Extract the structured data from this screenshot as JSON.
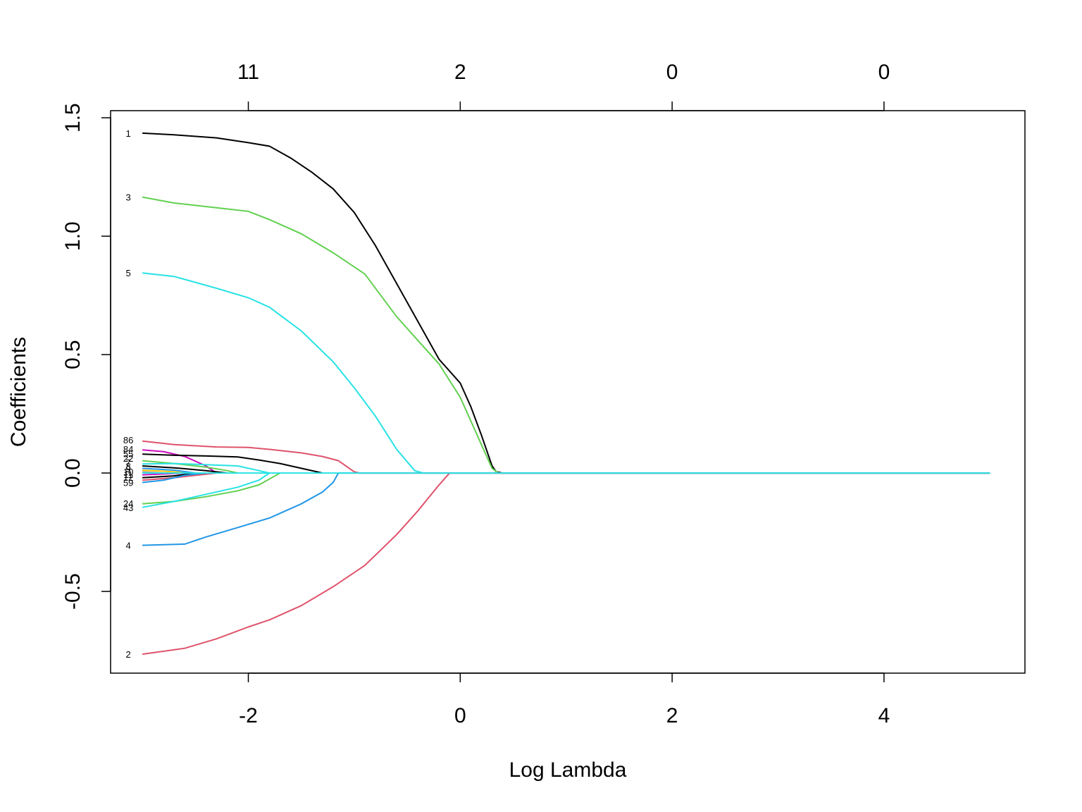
{
  "chart_data": {
    "type": "line",
    "title": "",
    "xlabel": "Log Lambda",
    "ylabel": "Coefficients",
    "xlim": [
      -3.3,
      5.33
    ],
    "ylim": [
      -0.845,
      1.53
    ],
    "grid": false,
    "legend": "none",
    "x_ticks": [
      {
        "value": -2,
        "label": "-2"
      },
      {
        "value": 0,
        "label": "0"
      },
      {
        "value": 2,
        "label": "2"
      },
      {
        "value": 4,
        "label": "4"
      }
    ],
    "y_ticks": [
      {
        "value": -0.5,
        "label": "-0.5"
      },
      {
        "value": 0.0,
        "label": "0.0"
      },
      {
        "value": 0.5,
        "label": "0.5"
      },
      {
        "value": 1.0,
        "label": "1.0"
      },
      {
        "value": 1.5,
        "label": "1.5"
      }
    ],
    "top_ticks": [
      {
        "value": -2,
        "label": "11"
      },
      {
        "value": 0,
        "label": "2"
      },
      {
        "value": 2,
        "label": "0"
      },
      {
        "value": 4,
        "label": "0"
      }
    ],
    "series": [
      {
        "name": "1",
        "color": "#000000",
        "points": [
          [
            -3.0,
            1.435
          ],
          [
            -2.7,
            1.428
          ],
          [
            -2.3,
            1.415
          ],
          [
            -2.0,
            1.395
          ],
          [
            -1.8,
            1.38
          ],
          [
            -1.6,
            1.33
          ],
          [
            -1.4,
            1.27
          ],
          [
            -1.2,
            1.2
          ],
          [
            -1.0,
            1.1
          ],
          [
            -0.8,
            0.96
          ],
          [
            -0.6,
            0.8
          ],
          [
            -0.4,
            0.64
          ],
          [
            -0.2,
            0.48
          ],
          [
            0.0,
            0.38
          ],
          [
            0.1,
            0.28
          ],
          [
            0.2,
            0.16
          ],
          [
            0.3,
            0.03
          ],
          [
            0.34,
            0.005
          ],
          [
            0.4,
            0.0
          ],
          [
            5.0,
            0.0
          ]
        ]
      },
      {
        "name": "3",
        "color": "#61D04F",
        "points": [
          [
            -3.0,
            1.165
          ],
          [
            -2.7,
            1.14
          ],
          [
            -2.3,
            1.12
          ],
          [
            -2.0,
            1.105
          ],
          [
            -1.8,
            1.07
          ],
          [
            -1.5,
            1.01
          ],
          [
            -1.2,
            0.93
          ],
          [
            -0.9,
            0.84
          ],
          [
            -0.6,
            0.66
          ],
          [
            -0.4,
            0.56
          ],
          [
            -0.2,
            0.46
          ],
          [
            0.0,
            0.32
          ],
          [
            0.1,
            0.22
          ],
          [
            0.2,
            0.12
          ],
          [
            0.3,
            0.02
          ],
          [
            0.36,
            0.0
          ],
          [
            5.0,
            0.0
          ]
        ]
      },
      {
        "name": "5",
        "color": "#28E2E5",
        "points": [
          [
            -3.0,
            0.845
          ],
          [
            -2.7,
            0.83
          ],
          [
            -2.3,
            0.78
          ],
          [
            -2.0,
            0.74
          ],
          [
            -1.8,
            0.7
          ],
          [
            -1.5,
            0.6
          ],
          [
            -1.2,
            0.47
          ],
          [
            -1.0,
            0.36
          ],
          [
            -0.8,
            0.24
          ],
          [
            -0.6,
            0.1
          ],
          [
            -0.43,
            0.01
          ],
          [
            -0.35,
            0.0
          ],
          [
            5.0,
            0.0
          ]
        ]
      },
      {
        "name": "2",
        "color": "#DF536B",
        "points": [
          [
            -3.0,
            -0.765
          ],
          [
            -2.6,
            -0.74
          ],
          [
            -2.3,
            -0.7
          ],
          [
            -2.0,
            -0.65
          ],
          [
            -1.8,
            -0.62
          ],
          [
            -1.5,
            -0.56
          ],
          [
            -1.2,
            -0.48
          ],
          [
            -0.9,
            -0.39
          ],
          [
            -0.6,
            -0.26
          ],
          [
            -0.4,
            -0.16
          ],
          [
            -0.2,
            -0.05
          ],
          [
            -0.1,
            0.0
          ],
          [
            5.0,
            0.0
          ]
        ]
      },
      {
        "name": "4",
        "color": "#2297E6",
        "points": [
          [
            -3.0,
            -0.305
          ],
          [
            -2.6,
            -0.3
          ],
          [
            -2.4,
            -0.27
          ],
          [
            -2.1,
            -0.23
          ],
          [
            -1.8,
            -0.19
          ],
          [
            -1.5,
            -0.13
          ],
          [
            -1.3,
            -0.08
          ],
          [
            -1.2,
            -0.04
          ],
          [
            -1.15,
            0.0
          ],
          [
            5.0,
            0.0
          ]
        ]
      },
      {
        "name": "86",
        "color": "#DF536B",
        "points": [
          [
            -3.0,
            0.135
          ],
          [
            -2.7,
            0.12
          ],
          [
            -2.3,
            0.11
          ],
          [
            -2.0,
            0.108
          ],
          [
            -1.8,
            0.1
          ],
          [
            -1.5,
            0.085
          ],
          [
            -1.3,
            0.07
          ],
          [
            -1.15,
            0.052
          ],
          [
            -1.0,
            0.005
          ],
          [
            -0.95,
            0.0
          ],
          [
            5.0,
            0.0
          ]
        ]
      },
      {
        "name": "84",
        "color": "#CD0BBC",
        "points": [
          [
            -3.0,
            0.098
          ],
          [
            -2.8,
            0.09
          ],
          [
            -2.6,
            0.07
          ],
          [
            -2.4,
            0.03
          ],
          [
            -2.3,
            0.0
          ]
        ]
      },
      {
        "name": "55",
        "color": "#000000",
        "points": [
          [
            -3.0,
            0.08
          ],
          [
            -2.7,
            0.075
          ],
          [
            -2.4,
            0.072
          ],
          [
            -2.1,
            0.068
          ],
          [
            -1.9,
            0.055
          ],
          [
            -1.7,
            0.04
          ],
          [
            -1.5,
            0.02
          ],
          [
            -1.3,
            0.0
          ]
        ]
      },
      {
        "name": "22",
        "color": "#61D04F",
        "points": [
          [
            -3.0,
            0.052
          ],
          [
            -2.7,
            0.04
          ],
          [
            -2.4,
            0.025
          ],
          [
            -2.2,
            0.01
          ],
          [
            -2.1,
            0.0
          ]
        ]
      },
      {
        "name": "7",
        "color": "#28E2E5",
        "points": [
          [
            -3.0,
            0.038
          ],
          [
            -2.7,
            0.04
          ],
          [
            -2.4,
            0.035
          ],
          [
            -2.1,
            0.03
          ],
          [
            -1.9,
            0.01
          ],
          [
            -1.8,
            0.0
          ]
        ]
      },
      {
        "name": "8",
        "color": "#000000",
        "points": [
          [
            -3.0,
            0.03
          ],
          [
            -2.7,
            0.022
          ],
          [
            -2.4,
            0.01
          ],
          [
            -2.2,
            0.0
          ]
        ]
      },
      {
        "name": "9",
        "color": "#2297E6",
        "points": [
          [
            -3.0,
            0.02
          ],
          [
            -2.7,
            0.012
          ],
          [
            -2.5,
            0.0
          ]
        ]
      },
      {
        "name": "10",
        "color": "#F5C710",
        "points": [
          [
            -3.0,
            0.012
          ],
          [
            -2.7,
            0.005
          ],
          [
            -2.6,
            0.0
          ]
        ]
      },
      {
        "name": "11",
        "color": "#9E9E9E",
        "points": [
          [
            -3.0,
            0.005
          ],
          [
            -2.8,
            0.0
          ]
        ]
      },
      {
        "name": "12",
        "color": "#CD0BBC",
        "points": [
          [
            -3.0,
            -0.008
          ],
          [
            -2.8,
            -0.004
          ],
          [
            -2.6,
            0.0
          ]
        ]
      },
      {
        "name": "13",
        "color": "#000000",
        "points": [
          [
            -3.0,
            -0.02
          ],
          [
            -2.7,
            -0.012
          ],
          [
            -2.5,
            0.0
          ]
        ]
      },
      {
        "name": "14",
        "color": "#DF536B",
        "points": [
          [
            -3.0,
            -0.03
          ],
          [
            -2.7,
            -0.02
          ],
          [
            -2.4,
            -0.005
          ],
          [
            -2.3,
            0.0
          ]
        ]
      },
      {
        "name": "59",
        "color": "#2297E6",
        "points": [
          [
            -3.0,
            -0.04
          ],
          [
            -2.8,
            -0.03
          ],
          [
            -2.6,
            -0.01
          ],
          [
            -2.4,
            0.0
          ]
        ]
      },
      {
        "name": "24",
        "color": "#61D04F",
        "points": [
          [
            -3.0,
            -0.13
          ],
          [
            -2.7,
            -0.12
          ],
          [
            -2.4,
            -0.1
          ],
          [
            -2.1,
            -0.075
          ],
          [
            -1.9,
            -0.05
          ],
          [
            -1.7,
            0.0
          ]
        ]
      },
      {
        "name": "43",
        "color": "#28E2E5",
        "points": [
          [
            -3.0,
            -0.145
          ],
          [
            -2.7,
            -0.12
          ],
          [
            -2.4,
            -0.09
          ],
          [
            -2.1,
            -0.06
          ],
          [
            -1.9,
            -0.03
          ],
          [
            -1.8,
            0.0
          ]
        ]
      },
      {
        "name": "",
        "color": "#28E2E5",
        "points": [
          [
            -3.0,
            0.0
          ],
          [
            5.0,
            0.0
          ]
        ]
      }
    ],
    "series_labels": [
      {
        "text": "1",
        "x": -3.0,
        "y": 1.435
      },
      {
        "text": "3",
        "x": -3.0,
        "y": 1.165
      },
      {
        "text": "5",
        "x": -3.0,
        "y": 0.845
      },
      {
        "text": "86",
        "x": -3.0,
        "y": 0.14
      },
      {
        "text": "84",
        "x": -3.0,
        "y": 0.102
      },
      {
        "text": "55",
        "x": -3.0,
        "y": 0.082
      },
      {
        "text": "22",
        "x": -3.0,
        "y": 0.062
      },
      {
        "text": "7",
        "x": -3.0,
        "y": 0.045
      },
      {
        "text": "8",
        "x": -3.0,
        "y": 0.03
      },
      {
        "text": "9",
        "x": -3.0,
        "y": 0.018
      },
      {
        "text": "10",
        "x": -3.0,
        "y": 0.006
      },
      {
        "text": "11",
        "x": -3.0,
        "y": -0.006
      },
      {
        "text": "12",
        "x": -3.0,
        "y": -0.018
      },
      {
        "text": "59",
        "x": -3.0,
        "y": -0.04
      },
      {
        "text": "24",
        "x": -3.0,
        "y": -0.128
      },
      {
        "text": "43",
        "x": -3.0,
        "y": -0.146
      },
      {
        "text": "4",
        "x": -3.0,
        "y": -0.305
      },
      {
        "text": "2",
        "x": -3.0,
        "y": -0.765
      }
    ]
  }
}
